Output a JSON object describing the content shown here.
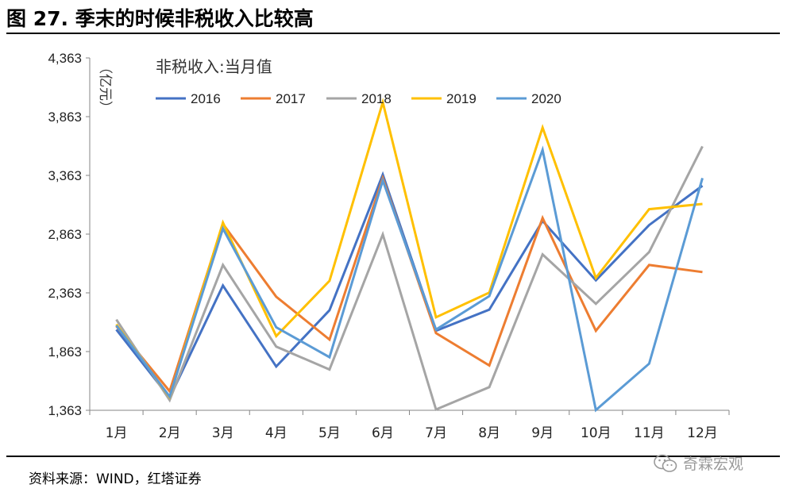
{
  "figure": {
    "title": "图 27. 季末的时候非税收入比较高",
    "source": "资料来源：WIND，红塔证券",
    "watermark": "奇霖宏观",
    "watermark_icon": "wechat-icon"
  },
  "chart_data": {
    "type": "line",
    "title": "非税收入:当月值",
    "ylabel": "（亿元）",
    "xlabel": "",
    "ylim": [
      1363,
      4363
    ],
    "y_ticks": [
      "1,363",
      "1,863",
      "2,363",
      "2,863",
      "3,363",
      "3,863",
      "4,363"
    ],
    "y_tick_values": [
      1363,
      1863,
      2363,
      2863,
      3363,
      3863,
      4363
    ],
    "categories": [
      "1月",
      "2月",
      "3月",
      "4月",
      "5月",
      "6月",
      "7月",
      "8月",
      "9月",
      "10月",
      "11月",
      "12月"
    ],
    "grid": false,
    "legend_position": "top",
    "series": [
      {
        "name": "2016",
        "color": "#4472C4",
        "values": [
          2050,
          1470,
          2425,
          1735,
          2215,
          3370,
          2040,
          2220,
          2975,
          2470,
          2940,
          3275
        ]
      },
      {
        "name": "2017",
        "color": "#ED7D31",
        "values": [
          2080,
          1525,
          2950,
          2330,
          1965,
          3340,
          2020,
          1745,
          3000,
          2040,
          2600,
          2540
        ]
      },
      {
        "name": "2018",
        "color": "#A5A5A5",
        "values": [
          2135,
          1450,
          2600,
          1905,
          1710,
          2860,
          1370,
          1560,
          2690,
          2270,
          2710,
          3610
        ]
      },
      {
        "name": "2019",
        "color": "#FFC000",
        "values": [
          2095,
          1475,
          2960,
          1995,
          2465,
          3985,
          2155,
          2365,
          3770,
          2490,
          3075,
          3120
        ]
      },
      {
        "name": "2020",
        "color": "#5B9BD5",
        "values": [
          2085,
          1480,
          2910,
          2070,
          1815,
          3320,
          2050,
          2335,
          3580,
          1365,
          1760,
          3340
        ]
      }
    ]
  }
}
